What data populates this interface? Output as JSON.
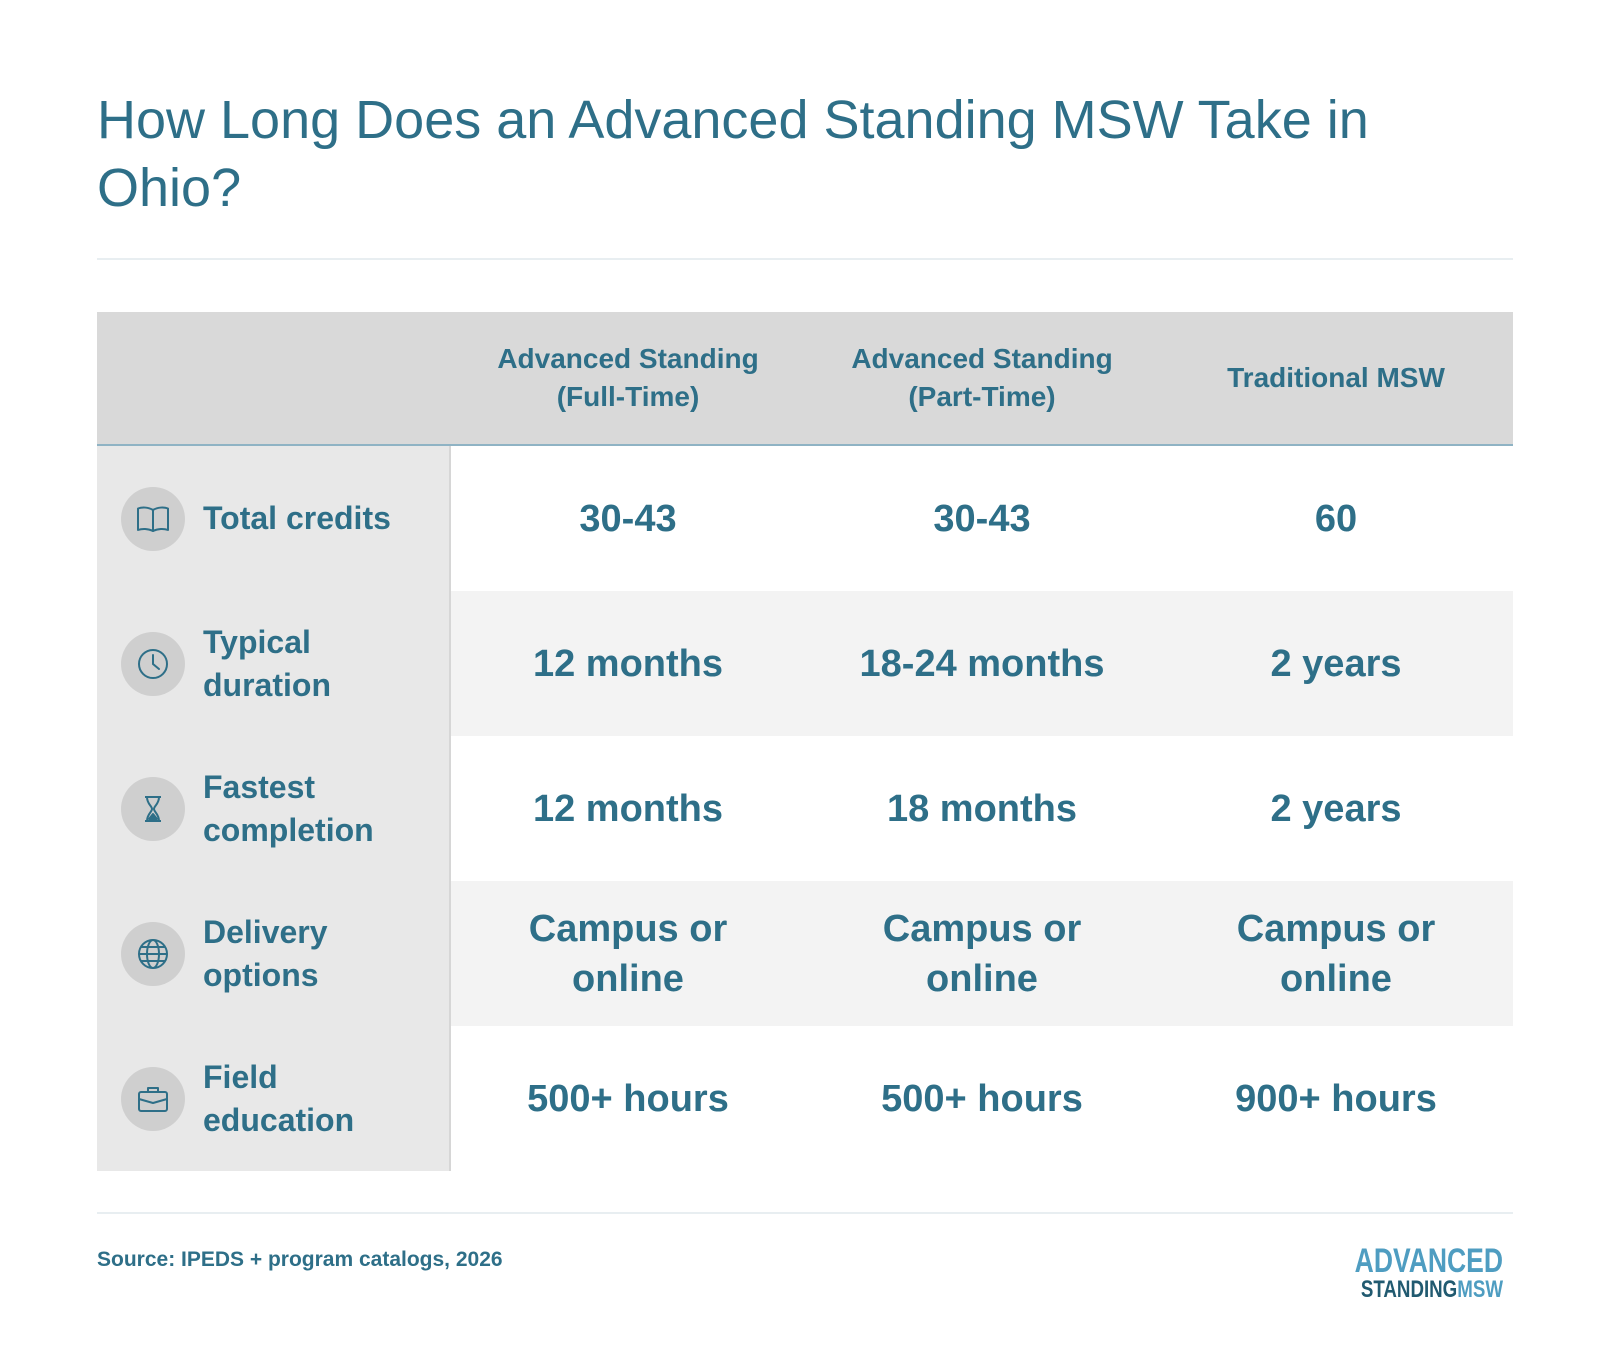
{
  "title": "How Long Does an Advanced Standing MSW Take in Ohio?",
  "chart_data": {
    "type": "table",
    "columns": [
      "Advanced Standing\n(Full-Time)",
      "Advanced Standing\n(Part-Time)",
      "Traditional MSW"
    ],
    "rows": [
      {
        "label": "Total credits",
        "icon": "book-icon",
        "values": [
          "30-43",
          "30-43",
          "60"
        ]
      },
      {
        "label": "Typical duration",
        "icon": "clock-icon",
        "values": [
          "12 months",
          "18-24 months",
          "2 years"
        ]
      },
      {
        "label": "Fastest completion",
        "icon": "hourglass-icon",
        "values": [
          "12 months",
          "18 months",
          "2 years"
        ]
      },
      {
        "label": "Delivery options",
        "icon": "globe-icon",
        "values": [
          "Campus or online",
          "Campus or online",
          "Campus or online"
        ]
      },
      {
        "label": "Field education",
        "icon": "briefcase-icon",
        "values": [
          "500+ hours",
          "500+ hours",
          "900+ hours"
        ]
      }
    ]
  },
  "footer": {
    "source": "Source: IPEDS + program catalogs, 2026",
    "logo_line1": "ADVANCED",
    "logo_line2a": "STANDING",
    "logo_line2b": "MSW"
  },
  "colors": {
    "accent": "#2e6f88",
    "header_bg": "#d9d9d9",
    "label_bg": "#e8e8e8",
    "stripe_bg": "#f3f3f3",
    "logo_light": "#4f9dc1",
    "logo_dark": "#215a70"
  }
}
